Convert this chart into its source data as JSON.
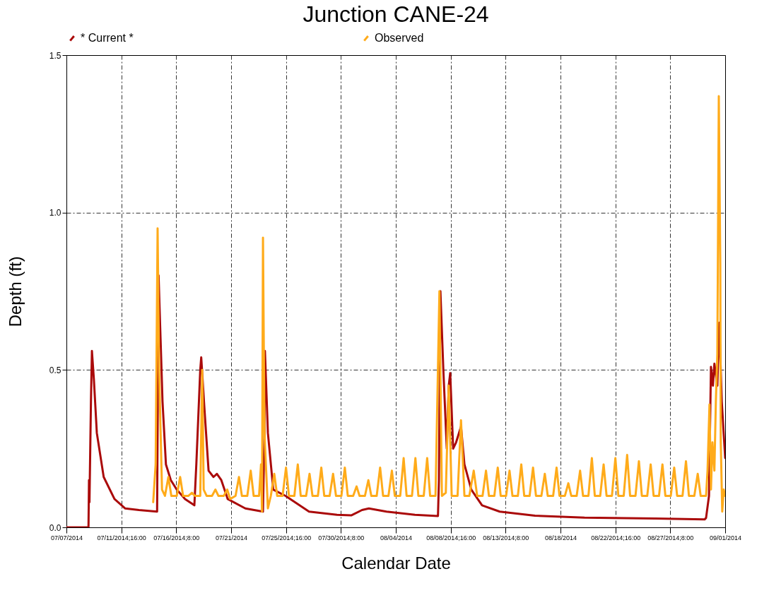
{
  "chart_data": {
    "type": "line",
    "title": "Junction CANE-24",
    "xlabel": "Calendar Date",
    "ylabel": "Depth (ft)",
    "legend": "top",
    "grid": true,
    "xlim": [
      "2014-07-07T00:00",
      "2014-09-01T00:00"
    ],
    "xticks": [
      {
        "value": "2014-07-07T00:00",
        "label": "07/07/2014"
      },
      {
        "value": "2014-07-11T16:00",
        "label": "07/11/2014;16:00"
      },
      {
        "value": "2014-07-16T08:00",
        "label": "07/16/2014;8:00"
      },
      {
        "value": "2014-07-21T00:00",
        "label": "07/21/2014"
      },
      {
        "value": "2014-07-25T16:00",
        "label": "07/25/2014;16:00"
      },
      {
        "value": "2014-07-30T08:00",
        "label": "07/30/2014;8:00"
      },
      {
        "value": "2014-08-04T00:00",
        "label": "08/04/2014"
      },
      {
        "value": "2014-08-08T16:00",
        "label": "08/08/2014;16:00"
      },
      {
        "value": "2014-08-13T08:00",
        "label": "08/13/2014;8:00"
      },
      {
        "value": "2014-08-18T00:00",
        "label": "08/18/2014"
      },
      {
        "value": "2014-08-22T16:00",
        "label": "08/22/2014;16:00"
      },
      {
        "value": "2014-08-27T08:00",
        "label": "08/27/2014;8:00"
      },
      {
        "value": "2014-09-01T00:00",
        "label": "09/01/2014"
      }
    ],
    "ylim": [
      0,
      1.5
    ],
    "yticks": [
      {
        "value": 0,
        "label": "0.0"
      },
      {
        "value": 0.5,
        "label": "0.5"
      },
      {
        "value": 1,
        "label": "1.0"
      },
      {
        "value": 1.5,
        "label": "1.5"
      }
    ],
    "series": [
      {
        "name": "* Current *",
        "color": "#aa0a0a",
        "x": [
          "2014-07-07T00:00",
          "2014-07-08T21:00",
          "2014-07-08T22:00",
          "2014-07-08T23:00",
          "2014-07-09T02:00",
          "2014-07-09T04:00",
          "2014-07-09T08:00",
          "2014-07-09T14:00",
          "2014-07-10T04:00",
          "2014-07-11T02:00",
          "2014-07-12T00:00",
          "2014-07-13T04:00",
          "2014-07-14T17:00",
          "2014-07-14T18:00",
          "2014-07-14T20:00",
          "2014-07-15T00:00",
          "2014-07-15T04:00",
          "2014-07-15T11:00",
          "2014-07-15T21:00",
          "2014-07-16T09:00",
          "2014-07-17T02:00",
          "2014-07-17T21:00",
          "2014-07-18T01:00",
          "2014-07-18T09:00",
          "2014-07-18T11:00",
          "2014-07-18T17:00",
          "2014-07-19T02:00",
          "2014-07-19T12:00",
          "2014-07-19T19:00",
          "2014-07-20T04:00",
          "2014-07-20T17:00",
          "2014-07-22T05:00",
          "2014-07-23T17:00",
          "2014-07-23T20:00",
          "2014-07-23T21:00",
          "2014-07-24T03:00",
          "2014-07-24T14:00",
          "2014-07-25T15:00",
          "2014-07-27T15:00",
          "2014-07-30T00:00",
          "2014-07-31T05:00",
          "2014-08-01T03:00",
          "2014-08-01T17:00",
          "2014-08-03T05:00",
          "2014-08-05T15:00",
          "2014-08-07T14:00",
          "2014-08-07T16:00",
          "2014-08-07T19:00",
          "2014-08-08T01:00",
          "2014-08-08T08:00",
          "2014-08-08T12:00",
          "2014-08-08T15:00",
          "2014-08-08T21:00",
          "2014-08-09T03:00",
          "2014-08-09T13:00",
          "2014-08-09T20:00",
          "2014-08-10T10:00",
          "2014-08-11T08:00",
          "2014-08-12T20:00",
          "2014-08-15T20:00",
          "2014-08-20T01:00",
          "2014-08-26T01:00",
          "2014-08-30T06:00",
          "2014-08-30T09:00",
          "2014-08-30T15:00",
          "2014-08-30T19:00",
          "2014-08-30T23:00",
          "2014-08-31T02:00",
          "2014-08-31T08:00",
          "2014-08-31T12:00",
          "2014-08-31T17:00",
          "2014-09-01T00:00"
        ],
        "values": [
          0,
          0,
          0.15,
          0.08,
          0.4,
          0.56,
          0.47,
          0.3,
          0.16,
          0.09,
          0.06,
          0.055,
          0.05,
          0.3,
          0.8,
          0.6,
          0.4,
          0.2,
          0.15,
          0.12,
          0.09,
          0.07,
          0.2,
          0.5,
          0.54,
          0.39,
          0.18,
          0.16,
          0.17,
          0.15,
          0.09,
          0.06,
          0.05,
          0.3,
          0.56,
          0.3,
          0.12,
          0.1,
          0.05,
          0.04,
          0.038,
          0.055,
          0.06,
          0.05,
          0.04,
          0.036,
          0.15,
          0.75,
          0.5,
          0.25,
          0.45,
          0.49,
          0.25,
          0.27,
          0.32,
          0.2,
          0.12,
          0.07,
          0.05,
          0.037,
          0.031,
          0.028,
          0.025,
          0.03,
          0.1,
          0.51,
          0.45,
          0.52,
          0.45,
          0.65,
          0.4,
          0.22
        ]
      },
      {
        "name": "Observed",
        "color": "#ffab1a",
        "x": [
          "2014-07-14T09:00",
          "2014-07-14T14:00",
          "2014-07-14T18:00",
          "2014-07-14T21:00",
          "2014-07-15T03:00",
          "2014-07-15T09:00",
          "2014-07-15T16:00",
          "2014-07-15T22:00",
          "2014-07-16T09:00",
          "2014-07-16T16:00",
          "2014-07-16T22:00",
          "2014-07-17T09:00",
          "2014-07-17T16:00",
          "2014-07-17T22:00",
          "2014-07-18T09:00",
          "2014-07-18T13:00",
          "2014-07-18T16:00",
          "2014-07-18T22:00",
          "2014-07-19T09:00",
          "2014-07-19T16:00",
          "2014-07-19T22:00",
          "2014-07-20T09:00",
          "2014-07-20T16:00",
          "2014-07-20T22:00",
          "2014-07-21T09:00",
          "2014-07-21T16:00",
          "2014-07-21T22:00",
          "2014-07-22T09:00",
          "2014-07-22T16:00",
          "2014-07-22T22:00",
          "2014-07-23T09:00",
          "2014-07-23T13:00",
          "2014-07-23T15:00",
          "2014-07-23T17:00",
          "2014-07-23T20:00",
          "2014-07-24T03:00",
          "2014-07-24T09:00",
          "2014-07-24T16:00",
          "2014-07-24T22:00",
          "2014-07-25T09:00",
          "2014-07-25T16:00",
          "2014-07-25T22:00",
          "2014-07-26T09:00",
          "2014-07-26T16:00",
          "2014-07-26T22:00",
          "2014-07-27T09:00",
          "2014-07-27T16:00",
          "2014-07-27T22:00",
          "2014-07-28T09:00",
          "2014-07-28T16:00",
          "2014-07-28T22:00",
          "2014-07-29T09:00",
          "2014-07-29T16:00",
          "2014-07-29T22:00",
          "2014-07-30T09:00",
          "2014-07-30T16:00",
          "2014-07-30T22:00",
          "2014-07-31T09:00",
          "2014-07-31T16:00",
          "2014-07-31T22:00",
          "2014-08-01T09:00",
          "2014-08-01T16:00",
          "2014-08-01T22:00",
          "2014-08-02T09:00",
          "2014-08-02T16:00",
          "2014-08-02T22:00",
          "2014-08-03T09:00",
          "2014-08-03T16:00",
          "2014-08-03T22:00",
          "2014-08-04T09:00",
          "2014-08-04T16:00",
          "2014-08-04T22:00",
          "2014-08-05T09:00",
          "2014-08-05T16:00",
          "2014-08-05T22:00",
          "2014-08-06T09:00",
          "2014-08-06T16:00",
          "2014-08-06T22:00",
          "2014-08-07T09:00",
          "2014-08-07T17:00",
          "2014-08-07T22:00",
          "2014-08-08T06:00",
          "2014-08-08T12:00",
          "2014-08-08T18:00",
          "2014-08-09T06:00",
          "2014-08-09T13:00",
          "2014-08-09T20:00",
          "2014-08-10T06:00",
          "2014-08-10T15:00",
          "2014-08-10T22:00",
          "2014-08-11T09:00",
          "2014-08-11T16:00",
          "2014-08-11T22:00",
          "2014-08-12T09:00",
          "2014-08-12T16:00",
          "2014-08-12T22:00",
          "2014-08-13T09:00",
          "2014-08-13T16:00",
          "2014-08-13T22:00",
          "2014-08-14T09:00",
          "2014-08-14T16:00",
          "2014-08-14T22:00",
          "2014-08-15T09:00",
          "2014-08-15T16:00",
          "2014-08-15T22:00",
          "2014-08-16T09:00",
          "2014-08-16T16:00",
          "2014-08-16T22:00",
          "2014-08-17T09:00",
          "2014-08-17T16:00",
          "2014-08-17T22:00",
          "2014-08-18T09:00",
          "2014-08-18T16:00",
          "2014-08-18T22:00",
          "2014-08-19T09:00",
          "2014-08-19T16:00",
          "2014-08-19T22:00",
          "2014-08-20T09:00",
          "2014-08-20T16:00",
          "2014-08-20T22:00",
          "2014-08-21T09:00",
          "2014-08-21T16:00",
          "2014-08-21T22:00",
          "2014-08-22T09:00",
          "2014-08-22T16:00",
          "2014-08-22T22:00",
          "2014-08-23T09:00",
          "2014-08-23T16:00",
          "2014-08-23T22:00",
          "2014-08-24T09:00",
          "2014-08-24T16:00",
          "2014-08-24T22:00",
          "2014-08-25T09:00",
          "2014-08-25T16:00",
          "2014-08-25T22:00",
          "2014-08-26T09:00",
          "2014-08-26T16:00",
          "2014-08-26T22:00",
          "2014-08-27T09:00",
          "2014-08-27T16:00",
          "2014-08-27T22:00",
          "2014-08-28T09:00",
          "2014-08-28T16:00",
          "2014-08-28T22:00",
          "2014-08-29T09:00",
          "2014-08-29T16:00",
          "2014-08-29T22:00",
          "2014-08-30T09:00",
          "2014-08-30T12:00",
          "2014-08-30T16:00",
          "2014-08-30T19:00",
          "2014-08-30T22:00",
          "2014-08-31T02:00",
          "2014-08-31T05:00",
          "2014-08-31T08:00",
          "2014-08-31T11:00",
          "2014-08-31T14:00",
          "2014-08-31T15:00",
          "2014-08-31T18:00",
          "2014-08-31T21:00",
          "2014-09-01T00:00"
        ],
        "values": [
          0.08,
          0.2,
          0.95,
          0.5,
          0.12,
          0.1,
          0.16,
          0.1,
          0.1,
          0.16,
          0.1,
          0.1,
          0.11,
          0.1,
          0.1,
          0.5,
          0.12,
          0.1,
          0.1,
          0.12,
          0.1,
          0.1,
          0.12,
          0.09,
          0.1,
          0.16,
          0.1,
          0.1,
          0.18,
          0.1,
          0.1,
          0.2,
          0.05,
          0.92,
          0.3,
          0.06,
          0.1,
          0.17,
          0.1,
          0.1,
          0.19,
          0.1,
          0.1,
          0.2,
          0.1,
          0.1,
          0.17,
          0.1,
          0.1,
          0.19,
          0.1,
          0.1,
          0.17,
          0.1,
          0.1,
          0.19,
          0.1,
          0.1,
          0.13,
          0.1,
          0.1,
          0.15,
          0.1,
          0.1,
          0.19,
          0.1,
          0.1,
          0.18,
          0.1,
          0.1,
          0.22,
          0.1,
          0.1,
          0.22,
          0.1,
          0.1,
          0.22,
          0.1,
          0.1,
          0.75,
          0.1,
          0.11,
          0.45,
          0.1,
          0.1,
          0.34,
          0.1,
          0.1,
          0.18,
          0.1,
          0.1,
          0.18,
          0.1,
          0.1,
          0.19,
          0.1,
          0.1,
          0.18,
          0.1,
          0.1,
          0.2,
          0.1,
          0.1,
          0.19,
          0.1,
          0.1,
          0.17,
          0.1,
          0.1,
          0.19,
          0.1,
          0.1,
          0.14,
          0.1,
          0.1,
          0.18,
          0.1,
          0.1,
          0.22,
          0.1,
          0.1,
          0.2,
          0.1,
          0.1,
          0.22,
          0.1,
          0.1,
          0.23,
          0.1,
          0.1,
          0.21,
          0.1,
          0.1,
          0.2,
          0.1,
          0.1,
          0.2,
          0.1,
          0.1,
          0.19,
          0.1,
          0.1,
          0.21,
          0.1,
          0.1,
          0.17,
          0.1,
          0.1,
          0.18,
          0.39,
          0.12,
          0.27,
          0.18,
          0.4,
          0.55,
          1.37,
          0.84,
          0.27,
          0.05,
          0.12,
          0.1
        ]
      }
    ]
  }
}
